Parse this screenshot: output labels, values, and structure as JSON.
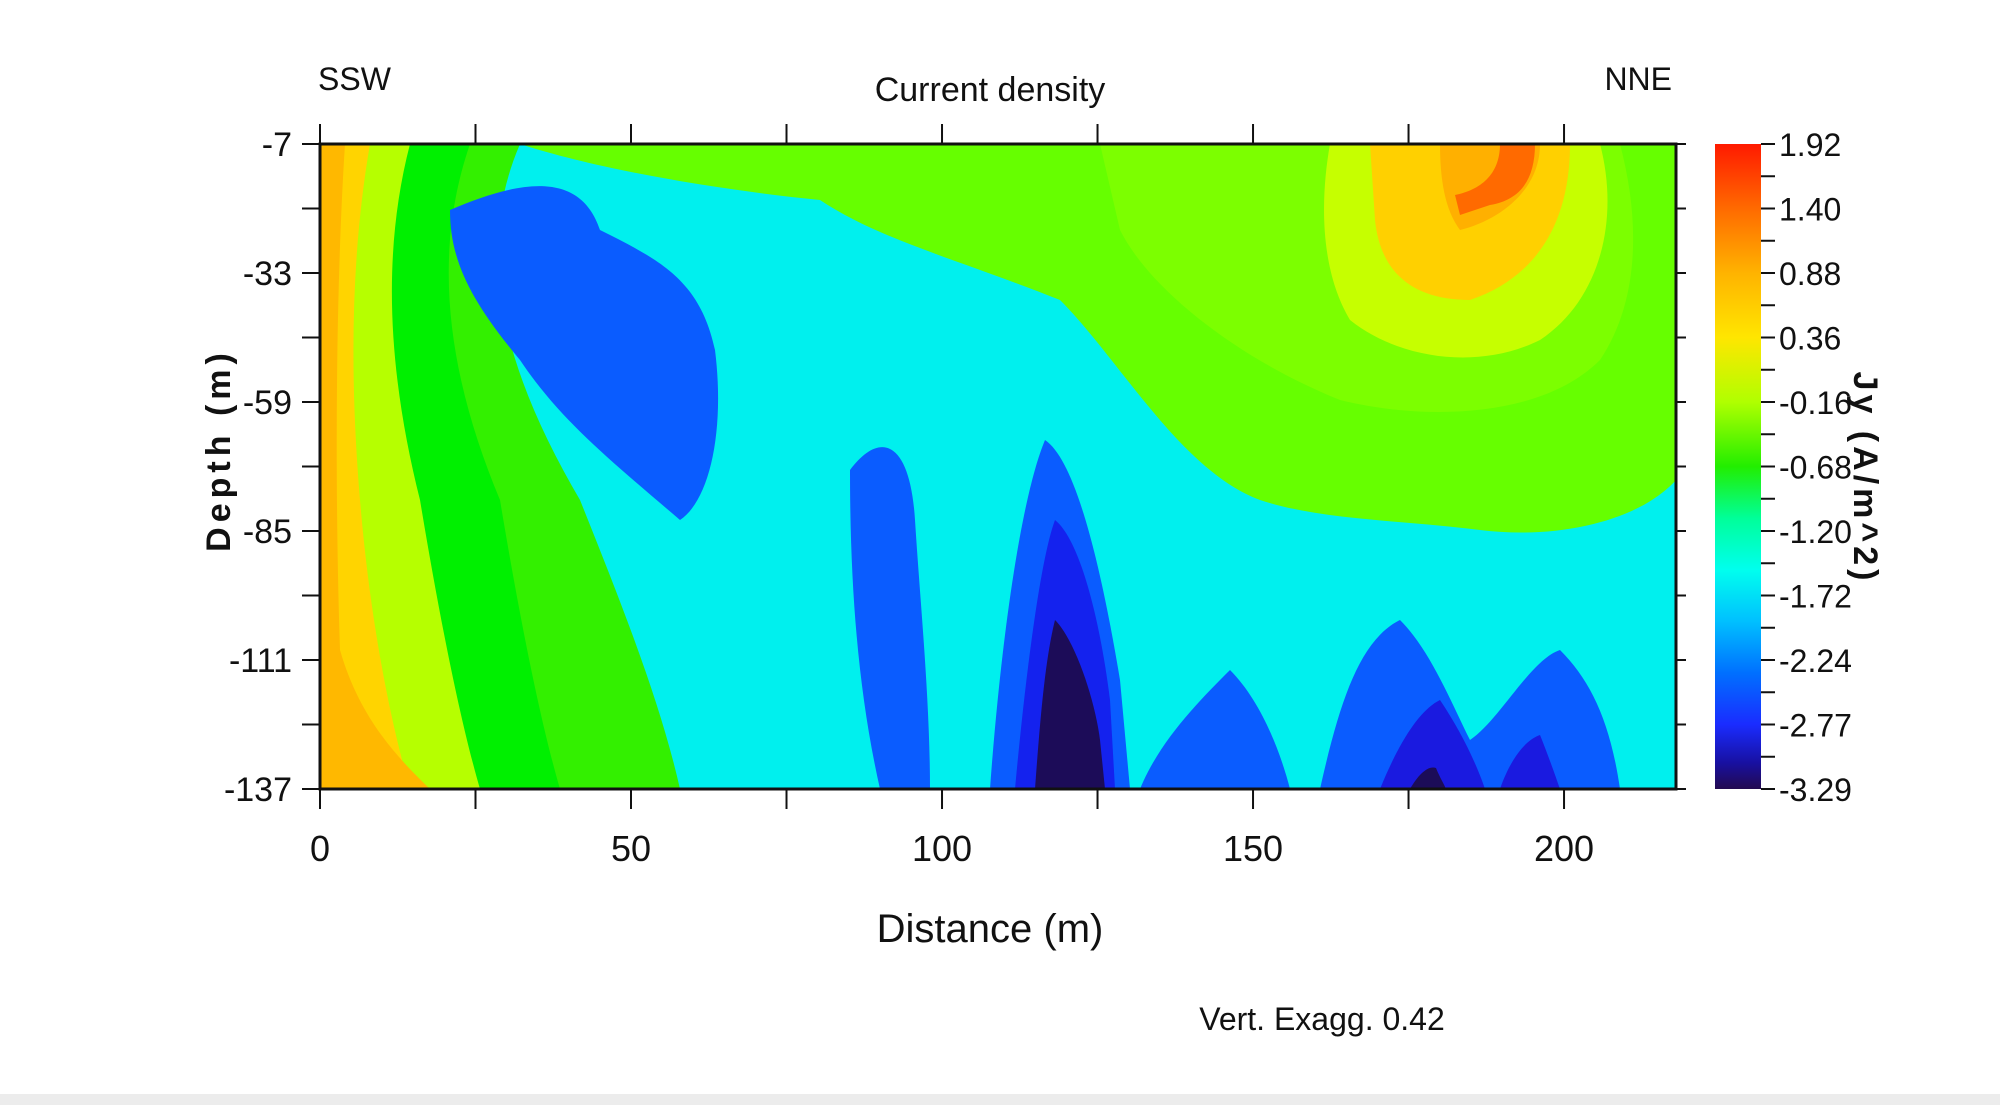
{
  "chart_data": {
    "type": "heatmap",
    "title": "Current density",
    "xlabel": "Distance (m)",
    "ylabel": "Depth (m)",
    "xlim": [
      0,
      218
    ],
    "ylim": [
      -137,
      -7
    ],
    "x_ticks": [
      "0",
      "50",
      "100",
      "150",
      "200"
    ],
    "y_ticks": [
      "-7",
      "-33",
      "-59",
      "-85",
      "-111",
      "-137"
    ],
    "direction_left": "SSW",
    "direction_right": "NNE",
    "colorbar": {
      "label": "Jy (A/m^2)",
      "ticks": [
        "1.92",
        "1.40",
        "0.88",
        "0.36",
        "-0.16",
        "-0.68",
        "-1.20",
        "-1.72",
        "-2.24",
        "-2.77",
        "-3.29"
      ],
      "colors": [
        "#ff1a00",
        "#ff6a00",
        "#ffb300",
        "#ffe600",
        "#b0ff00",
        "#33ee00",
        "#00ff88",
        "#00ffee",
        "#00c0ff",
        "#0078ff",
        "#1a3cff",
        "#1010d0",
        "#230a50"
      ]
    },
    "note": "Vert. Exagg. 0.42",
    "grid": false
  }
}
